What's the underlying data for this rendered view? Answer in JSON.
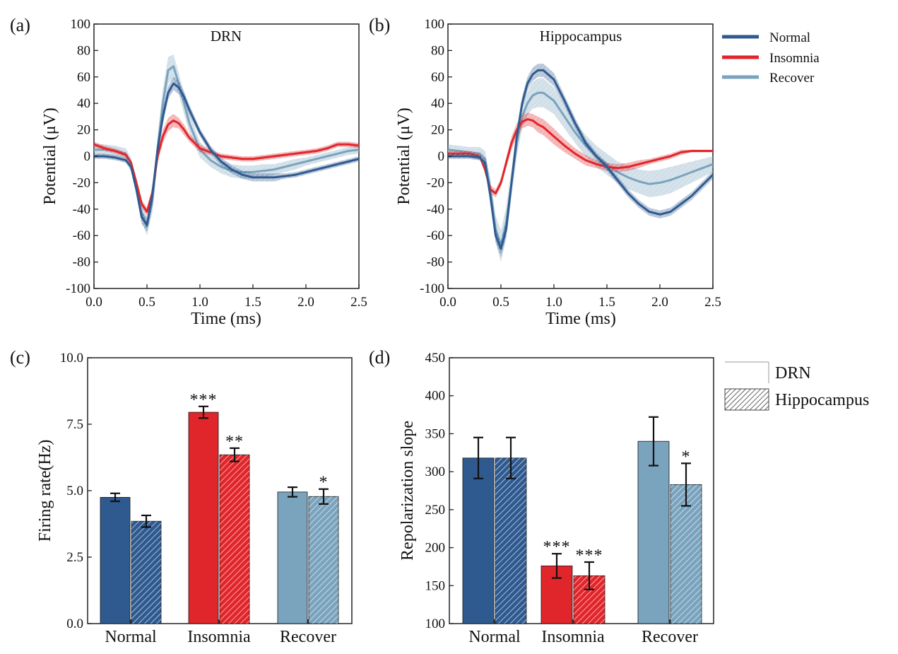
{
  "colors": {
    "normal": "#2f5a8f",
    "insomnia": "#e0262b",
    "recover": "#7aa3bd"
  },
  "legend": {
    "traces": [
      {
        "key": "normal",
        "label": "Normal"
      },
      {
        "key": "insomnia",
        "label": "Insomnia"
      },
      {
        "key": "recover",
        "label": "Recover"
      }
    ],
    "bars": [
      {
        "key": "drn",
        "label": "DRN",
        "pattern": "solid"
      },
      {
        "key": "hippocampus",
        "label": "Hippocampus",
        "pattern": "hatched"
      }
    ]
  },
  "chart_data": [
    {
      "id": "a",
      "panel_label": "(a)",
      "type": "line",
      "title": "DRN",
      "xlabel": "Time (ms)",
      "ylabel": "Potential (μV)",
      "xlim": [
        0,
        2.5
      ],
      "ylim": [
        -100,
        100
      ],
      "xticks": [
        0,
        0.5,
        1,
        1.5,
        2,
        2.5
      ],
      "xtick_labels": [
        "0.0",
        "0.5",
        "1.0",
        "1.5",
        "2.0",
        "2.5"
      ],
      "yticks": [
        100,
        80,
        60,
        40,
        20,
        0,
        -20,
        -40,
        -60,
        -80,
        -100
      ],
      "series": [
        {
          "key": "recover",
          "name": "Recover",
          "x": [
            0,
            0.1,
            0.2,
            0.3,
            0.35,
            0.4,
            0.45,
            0.5,
            0.55,
            0.6,
            0.65,
            0.7,
            0.75,
            0.8,
            0.85,
            0.9,
            1.0,
            1.1,
            1.2,
            1.3,
            1.4,
            1.5,
            1.6,
            1.7,
            1.8,
            1.9,
            2.0,
            2.1,
            2.2,
            2.3,
            2.4,
            2.5
          ],
          "y": [
            5,
            5,
            4,
            2,
            -5,
            -22,
            -43,
            -53,
            -35,
            5,
            40,
            65,
            68,
            55,
            40,
            25,
            5,
            -3,
            -8,
            -11,
            -12,
            -12,
            -11,
            -10,
            -8,
            -6,
            -4,
            -2,
            0,
            2,
            4,
            5
          ],
          "band": [
            4,
            4,
            4,
            4,
            4,
            5,
            6,
            7,
            8,
            10,
            11,
            10,
            9,
            8,
            8,
            7,
            6,
            5,
            5,
            5,
            5,
            5,
            5,
            4,
            4,
            4,
            3,
            3,
            3,
            3,
            3,
            3
          ]
        },
        {
          "key": "insomnia",
          "name": "Insomnia",
          "x": [
            0,
            0.1,
            0.2,
            0.3,
            0.35,
            0.4,
            0.45,
            0.5,
            0.55,
            0.6,
            0.65,
            0.7,
            0.75,
            0.8,
            0.85,
            0.9,
            1.0,
            1.1,
            1.2,
            1.3,
            1.4,
            1.5,
            1.6,
            1.7,
            1.8,
            1.9,
            2.0,
            2.1,
            2.2,
            2.3,
            2.4,
            2.5
          ],
          "y": [
            9,
            6,
            4,
            1,
            -5,
            -20,
            -36,
            -42,
            -28,
            0,
            15,
            24,
            27,
            25,
            20,
            14,
            6,
            3,
            0,
            -1,
            -2,
            -2,
            -1,
            0,
            1,
            2,
            3,
            4,
            6,
            9,
            9,
            8
          ],
          "band": [
            2,
            2,
            2,
            2,
            2,
            3,
            3,
            3,
            4,
            5,
            5,
            5,
            5,
            4,
            4,
            3,
            3,
            2,
            2,
            2,
            2,
            2,
            2,
            2,
            2,
            2,
            2,
            2,
            2,
            2,
            2,
            2
          ]
        },
        {
          "key": "normal",
          "name": "Normal",
          "x": [
            0,
            0.1,
            0.2,
            0.3,
            0.35,
            0.4,
            0.45,
            0.5,
            0.55,
            0.6,
            0.65,
            0.7,
            0.75,
            0.8,
            0.85,
            0.9,
            1.0,
            1.1,
            1.2,
            1.3,
            1.4,
            1.5,
            1.6,
            1.7,
            1.8,
            1.9,
            2.0,
            2.1,
            2.2,
            2.3,
            2.4,
            2.5
          ],
          "y": [
            0,
            0,
            -1,
            -3,
            -8,
            -25,
            -46,
            -52,
            -30,
            5,
            30,
            48,
            55,
            52,
            45,
            35,
            18,
            5,
            -4,
            -10,
            -14,
            -16,
            -16,
            -16,
            -15,
            -14,
            -12,
            -10,
            -8,
            -6,
            -4,
            -2
          ],
          "band": [
            2,
            2,
            2,
            2,
            3,
            4,
            5,
            5,
            6,
            6,
            6,
            5,
            5,
            5,
            4,
            4,
            3,
            3,
            3,
            3,
            3,
            3,
            3,
            3,
            2,
            2,
            2,
            2,
            2,
            2,
            2,
            2
          ]
        }
      ]
    },
    {
      "id": "b",
      "panel_label": "(b)",
      "type": "line",
      "title": "Hippocampus",
      "xlabel": "Time (ms)",
      "ylabel": "Potential (μV)",
      "xlim": [
        0,
        2.5
      ],
      "ylim": [
        -100,
        100
      ],
      "xticks": [
        0,
        0.5,
        1,
        1.5,
        2,
        2.5
      ],
      "xtick_labels": [
        "0.0",
        "0.5",
        "1.0",
        "1.5",
        "2.0",
        "2.5"
      ],
      "yticks": [
        100,
        80,
        60,
        40,
        20,
        0,
        -20,
        -40,
        -60,
        -80,
        -100
      ],
      "series": [
        {
          "key": "recover",
          "name": "Recover",
          "x": [
            0,
            0.1,
            0.2,
            0.3,
            0.35,
            0.4,
            0.45,
            0.5,
            0.55,
            0.6,
            0.65,
            0.7,
            0.75,
            0.8,
            0.85,
            0.9,
            1.0,
            1.1,
            1.2,
            1.3,
            1.4,
            1.5,
            1.6,
            1.7,
            1.8,
            1.9,
            2.0,
            2.1,
            2.2,
            2.3,
            2.4,
            2.5
          ],
          "y": [
            5,
            4,
            3,
            2,
            -2,
            -25,
            -55,
            -68,
            -50,
            -20,
            10,
            30,
            40,
            46,
            48,
            48,
            42,
            30,
            18,
            8,
            0,
            -6,
            -12,
            -16,
            -19,
            -21,
            -20,
            -18,
            -15,
            -12,
            -9,
            -6
          ],
          "band": [
            4,
            4,
            4,
            5,
            6,
            8,
            10,
            12,
            12,
            11,
            10,
            9,
            9,
            10,
            11,
            11,
            10,
            9,
            8,
            8,
            8,
            8,
            8,
            9,
            9,
            10,
            10,
            10,
            9,
            8,
            7,
            6
          ]
        },
        {
          "key": "insomnia",
          "name": "Insomnia",
          "x": [
            0,
            0.1,
            0.2,
            0.3,
            0.35,
            0.4,
            0.45,
            0.5,
            0.55,
            0.6,
            0.65,
            0.7,
            0.75,
            0.8,
            0.85,
            0.9,
            1.0,
            1.1,
            1.2,
            1.3,
            1.4,
            1.5,
            1.6,
            1.7,
            1.8,
            1.9,
            2.0,
            2.1,
            2.2,
            2.3,
            2.4,
            2.5
          ],
          "y": [
            2,
            2,
            2,
            0,
            -10,
            -25,
            -28,
            -20,
            -5,
            10,
            20,
            26,
            28,
            27,
            24,
            22,
            15,
            8,
            2,
            -3,
            -6,
            -8,
            -9,
            -8,
            -6,
            -4,
            -2,
            0,
            3,
            4,
            4,
            4
          ],
          "band": [
            2,
            2,
            2,
            2,
            2,
            3,
            3,
            3,
            4,
            5,
            5,
            5,
            5,
            5,
            6,
            6,
            6,
            5,
            4,
            4,
            3,
            3,
            3,
            3,
            3,
            2,
            2,
            2,
            2,
            1,
            1,
            1
          ]
        },
        {
          "key": "normal",
          "name": "Normal",
          "x": [
            0,
            0.1,
            0.2,
            0.3,
            0.35,
            0.4,
            0.45,
            0.5,
            0.55,
            0.6,
            0.65,
            0.7,
            0.75,
            0.8,
            0.85,
            0.9,
            1.0,
            1.1,
            1.2,
            1.3,
            1.4,
            1.5,
            1.6,
            1.7,
            1.8,
            1.9,
            2.0,
            2.1,
            2.2,
            2.3,
            2.4,
            2.5
          ],
          "y": [
            0,
            0,
            0,
            -1,
            -5,
            -30,
            -60,
            -70,
            -55,
            -20,
            15,
            40,
            55,
            62,
            65,
            65,
            58,
            42,
            25,
            10,
            0,
            -8,
            -18,
            -28,
            -36,
            -42,
            -44,
            -42,
            -36,
            -30,
            -22,
            -14
          ],
          "band": [
            2,
            2,
            2,
            2,
            3,
            4,
            5,
            6,
            6,
            5,
            5,
            5,
            5,
            5,
            5,
            5,
            5,
            4,
            4,
            3,
            3,
            3,
            3,
            3,
            3,
            3,
            3,
            3,
            3,
            3,
            3,
            3
          ]
        }
      ]
    },
    {
      "id": "c",
      "panel_label": "(c)",
      "type": "bar",
      "title": "",
      "xlabel": "",
      "ylabel": "Firing rate(Hz)",
      "ylim": [
        0,
        10
      ],
      "yticks": [
        0,
        2.5,
        5,
        7.5,
        10
      ],
      "ytick_labels": [
        "0.0",
        "2.5",
        "5.0",
        "7.5",
        "10.0"
      ],
      "categories": [
        "Normal",
        "Insomnia",
        "Recover"
      ],
      "bars": [
        {
          "cat": 0,
          "group": "DRN",
          "color_key": "normal",
          "hatched": false,
          "value": 4.75,
          "err": 0.15,
          "sig": ""
        },
        {
          "cat": 0,
          "group": "Hippocampus",
          "color_key": "normal",
          "hatched": true,
          "value": 3.85,
          "err": 0.22,
          "sig": ""
        },
        {
          "cat": 1,
          "group": "DRN",
          "color_key": "insomnia",
          "hatched": false,
          "value": 7.95,
          "err": 0.22,
          "sig": "***"
        },
        {
          "cat": 1,
          "group": "Hippocampus",
          "color_key": "insomnia",
          "hatched": true,
          "value": 6.35,
          "err": 0.25,
          "sig": "**"
        },
        {
          "cat": 2,
          "group": "DRN",
          "color_key": "recover",
          "hatched": false,
          "value": 4.95,
          "err": 0.18,
          "sig": ""
        },
        {
          "cat": 2,
          "group": "Hippocampus",
          "color_key": "recover",
          "hatched": true,
          "value": 4.78,
          "err": 0.28,
          "sig": "*"
        }
      ]
    },
    {
      "id": "d",
      "panel_label": "(d)",
      "type": "bar",
      "title": "",
      "xlabel": "",
      "ylabel": "Repolarization slope",
      "ylim": [
        100,
        450
      ],
      "yticks": [
        100,
        150,
        200,
        250,
        300,
        350,
        400,
        450
      ],
      "ytick_labels": [
        "100",
        "150",
        "200",
        "250",
        "300",
        "350",
        "400",
        "450"
      ],
      "categories": [
        "Normal",
        "Insomnia",
        "Recover"
      ],
      "bars": [
        {
          "cat": 0,
          "group": "DRN",
          "color_key": "normal",
          "hatched": false,
          "value": 318,
          "err": 27,
          "sig": ""
        },
        {
          "cat": 0,
          "group": "Hippocampus",
          "color_key": "normal",
          "hatched": true,
          "value": 318,
          "err": 27,
          "sig": ""
        },
        {
          "cat": 1,
          "group": "DRN",
          "color_key": "insomnia",
          "hatched": false,
          "value": 176,
          "err": 16,
          "sig": "***"
        },
        {
          "cat": 1,
          "group": "Hippocampus",
          "color_key": "insomnia",
          "hatched": true,
          "value": 163,
          "err": 18,
          "sig": "***"
        },
        {
          "cat": 2,
          "group": "DRN",
          "color_key": "recover",
          "hatched": false,
          "value": 340,
          "err": 32,
          "sig": ""
        },
        {
          "cat": 2,
          "group": "Hippocampus",
          "color_key": "recover",
          "hatched": true,
          "value": 283,
          "err": 28,
          "sig": "*"
        }
      ]
    }
  ]
}
